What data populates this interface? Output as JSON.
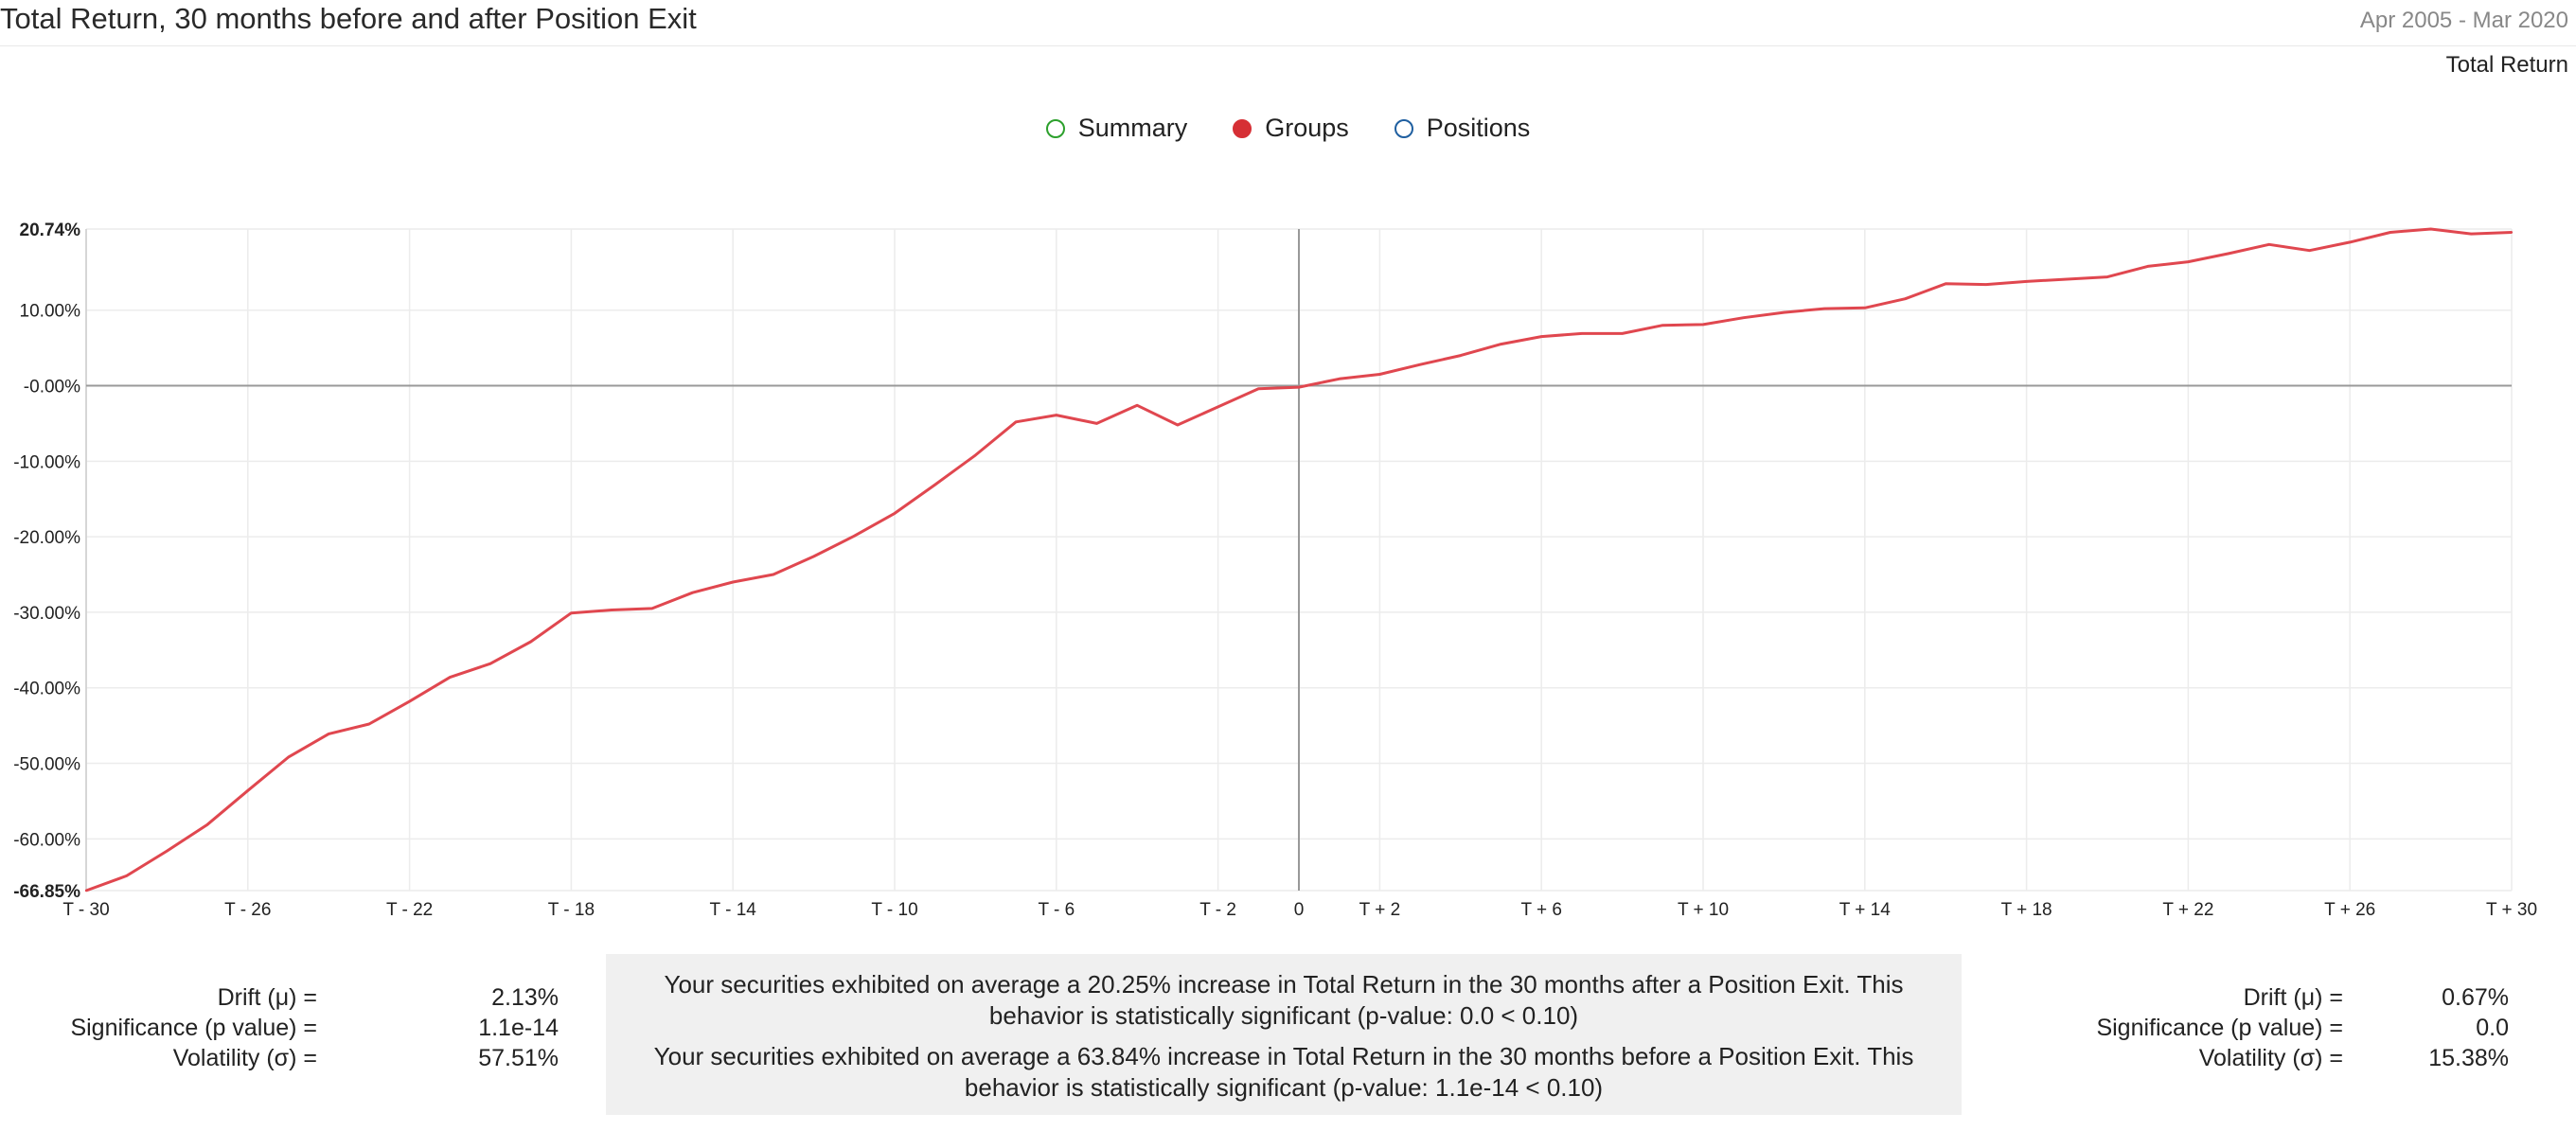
{
  "header": {
    "title": "Total Return, 30 months before and after Position Exit",
    "date_range": "Apr 2005 - Mar 2020",
    "metric_label": "Total Return"
  },
  "legend": {
    "items": [
      {
        "label": "Summary",
        "color": "#2ca02c",
        "filled": false
      },
      {
        "label": "Groups",
        "color": "#d62f35",
        "filled": true
      },
      {
        "label": "Positions",
        "color": "#1f5fa0",
        "filled": false
      }
    ]
  },
  "colors": {
    "series": "#e0474f",
    "zero_line": "#999999",
    "grid": "#ececec",
    "summary_bg": "#f0f0f0"
  },
  "chart_data": {
    "type": "line",
    "title": "Total Return, 30 months before and after Position Exit",
    "xlabel": "",
    "ylabel": "",
    "x": [
      -30,
      -29,
      -28,
      -27,
      -26,
      -25,
      -24,
      -23,
      -22,
      -21,
      -20,
      -19,
      -18,
      -17,
      -16,
      -15,
      -14,
      -13,
      -12,
      -11,
      -10,
      -9,
      -8,
      -7,
      -6,
      -5,
      -4,
      -3,
      -2,
      -1,
      0,
      1,
      2,
      3,
      4,
      5,
      6,
      7,
      8,
      9,
      10,
      11,
      12,
      13,
      14,
      15,
      16,
      17,
      18,
      19,
      20,
      21,
      22,
      23,
      24,
      25,
      26,
      27,
      28,
      29,
      30
    ],
    "x_tick_values": [
      -30,
      -26,
      -22,
      -18,
      -14,
      -10,
      -6,
      -2,
      0,
      2,
      6,
      10,
      14,
      18,
      22,
      26,
      30
    ],
    "x_tick_labels": [
      "T - 30",
      "T - 26",
      "T - 22",
      "T - 18",
      "T - 14",
      "T - 10",
      "T - 6",
      "T - 2",
      "0",
      "T + 2",
      "T + 6",
      "T + 10",
      "T + 14",
      "T + 18",
      "T + 22",
      "T + 26",
      "T + 30"
    ],
    "y_tick_labels": [
      {
        "value": 20.74,
        "label": "20.74%",
        "bold": true
      },
      {
        "value": 10,
        "label": "10.00%"
      },
      {
        "value": 0,
        "label": "-0.00%"
      },
      {
        "value": -10,
        "label": "-10.00%"
      },
      {
        "value": -20,
        "label": "-20.00%"
      },
      {
        "value": -30,
        "label": "-30.00%"
      },
      {
        "value": -40,
        "label": "-40.00%"
      },
      {
        "value": -50,
        "label": "-50.00%"
      },
      {
        "value": -60,
        "label": "-60.00%"
      },
      {
        "value": -66.85,
        "label": "-66.85%",
        "bold": true
      }
    ],
    "ylim": [
      -66.85,
      20.74
    ],
    "xlim": [
      -30,
      30
    ],
    "grid": true,
    "series": [
      {
        "name": "Groups",
        "values": [
          -66.85,
          -64.9,
          -61.6,
          -58.1,
          -53.6,
          -49.2,
          -46.1,
          -44.8,
          -41.8,
          -38.6,
          -36.8,
          -33.9,
          -30.1,
          -29.7,
          -29.5,
          -27.4,
          -26.0,
          -25.0,
          -22.6,
          -19.9,
          -16.9,
          -13.1,
          -9.2,
          -4.8,
          -3.9,
          -5.0,
          -2.6,
          -5.2,
          -2.8,
          -0.4,
          -0.2,
          0.9,
          1.5,
          2.8,
          4.0,
          5.5,
          6.5,
          6.9,
          6.9,
          8.0,
          8.1,
          9.0,
          9.7,
          10.2,
          10.3,
          11.5,
          13.5,
          13.4,
          13.8,
          14.1,
          14.4,
          15.8,
          16.4,
          17.5,
          18.7,
          17.9,
          19.0,
          20.3,
          20.74,
          20.1,
          20.3
        ]
      }
    ]
  },
  "stats_left": [
    {
      "label": "Drift (μ) =",
      "value": "2.13%"
    },
    {
      "label": "Significance (p value) =",
      "value": "1.1e-14"
    },
    {
      "label": "Volatility (σ) =",
      "value": "57.51%"
    }
  ],
  "stats_right": [
    {
      "label": "Drift (μ) =",
      "value": "0.67%"
    },
    {
      "label": "Significance (p value) =",
      "value": "0.0"
    },
    {
      "label": "Volatility (σ) =",
      "value": "15.38%"
    }
  ],
  "summary": {
    "after_text": "Your securities exhibited on average a 20.25% increase in Total Return in the 30 months after a Position Exit. This behavior is statistically significant (p-value: 0.0 < 0.10)",
    "before_text": "Your securities exhibited on average a 63.84% increase in Total Return in the 30 months before a Position Exit. This behavior is statistically significant (p-value: 1.1e-14 < 0.10)"
  }
}
